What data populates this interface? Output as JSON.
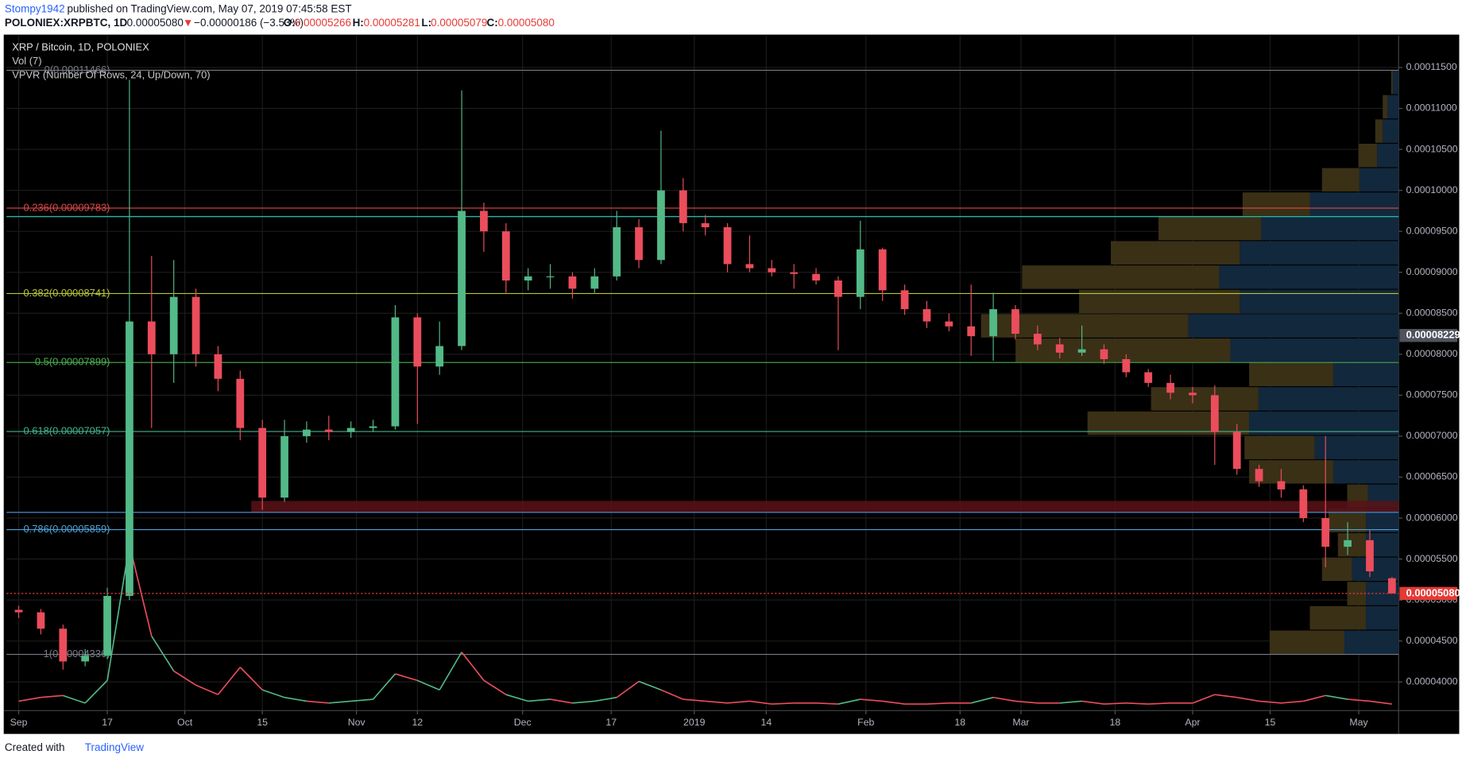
{
  "header": {
    "author": "Stompy1942",
    "published": "published on TradingView.com, May 07, 2019 07:45:58 EST",
    "symbol": "POLONIEX:XRPBTC, 1D",
    "last": "0.00005080",
    "arrow": "▼",
    "change": "−0.00000186 (−3.53%)",
    "o_label": "O:",
    "o": "0.00005266",
    "h_label": "H:",
    "h": "0.00005281",
    "l_label": "L:",
    "l": "0.00005079",
    "c_label": "C:",
    "c": "0.00005080"
  },
  "footer": {
    "created": "Created with",
    "brand": "TradingView"
  },
  "chart_data": {
    "type": "candlestick",
    "title": "XRP / Bitcoin, 1D, POLONIEX",
    "up_color": "#53b987",
    "down_color": "#eb4d5c",
    "grid": true,
    "x": [
      0,
      4,
      8,
      12,
      16,
      20,
      24,
      28,
      32,
      36,
      40,
      44,
      48,
      52,
      56,
      60,
      64,
      68,
      72,
      76,
      80,
      84,
      88,
      92,
      96,
      100,
      104,
      108,
      112,
      116,
      120,
      124,
      128,
      132,
      136,
      140,
      144,
      148,
      152,
      156,
      160,
      164,
      168,
      172,
      176,
      180,
      184,
      188,
      192,
      196,
      200,
      204,
      208,
      212,
      216,
      220,
      224,
      228,
      232,
      236,
      240,
      244,
      248
    ],
    "open": [
      4.88e-05,
      4.85e-05,
      4.65e-05,
      4.25e-05,
      4.32e-05,
      5.05e-05,
      8.4e-05,
      8e-05,
      8.7e-05,
      8e-05,
      7.7e-05,
      7.1e-05,
      6.25e-05,
      7e-05,
      7.08e-05,
      7.05e-05,
      7.1e-05,
      7.12e-05,
      8.45e-05,
      7.85e-05,
      8.1e-05,
      9.75e-05,
      9.5e-05,
      8.9e-05,
      8.95e-05,
      8.95e-05,
      8.8e-05,
      8.95e-05,
      9.55e-05,
      9.15e-05,
      0.0001,
      9.6e-05,
      9.55e-05,
      9.1e-05,
      9.05e-05,
      9e-05,
      8.98e-05,
      8.9e-05,
      8.7e-05,
      9.28e-05,
      8.78e-05,
      8.55e-05,
      8.4e-05,
      8.34e-05,
      8.22e-05,
      8.55e-05,
      8.25e-05,
      8.12e-05,
      8.02e-05,
      8.06e-05,
      7.94e-05,
      7.78e-05,
      7.65e-05,
      7.53e-05,
      7.5e-05,
      7.05e-05,
      6.6e-05,
      6.45e-05,
      6.35e-05,
      6e-05,
      5.65e-05,
      5.73e-05,
      5.266e-05
    ],
    "high": [
      4.93e-05,
      4.89e-05,
      4.7e-05,
      4.4e-05,
      5.15e-05,
      0.0001135,
      9.2e-05,
      9.15e-05,
      8.8e-05,
      8.1e-05,
      7.8e-05,
      7.2e-05,
      7.2e-05,
      7.18e-05,
      7.25e-05,
      7.18e-05,
      7.2e-05,
      8.6e-05,
      8.5e-05,
      8.4e-05,
      0.0001122,
      9.85e-05,
      9.6e-05,
      9.05e-05,
      9.1e-05,
      9e-05,
      9.05e-05,
      9.75e-05,
      9.65e-05,
      0.0001073,
      0.0001015,
      9.7e-05,
      9.6e-05,
      9.45e-05,
      9.15e-05,
      9.1e-05,
      9.05e-05,
      8.95e-05,
      9.63e-05,
      9.3e-05,
      8.85e-05,
      8.65e-05,
      8.5e-05,
      8.85e-05,
      8.75e-05,
      8.6e-05,
      8.35e-05,
      8.2e-05,
      8.35e-05,
      8.12e-05,
      8e-05,
      7.82e-05,
      7.75e-05,
      7.6e-05,
      7.62e-05,
      7.15e-05,
      6.65e-05,
      6.6e-05,
      6.4e-05,
      7e-05,
      5.95e-05,
      5.85e-05,
      5.281e-05
    ],
    "low": [
      4.78e-05,
      4.58e-05,
      4.15e-05,
      4.19e-05,
      4.28e-05,
      5e-05,
      7.1e-05,
      7.65e-05,
      7.85e-05,
      7.55e-05,
      6.95e-05,
      6.1e-05,
      6.2e-05,
      6.92e-05,
      6.95e-05,
      6.98e-05,
      7.05e-05,
      7.08e-05,
      7.15e-05,
      7.75e-05,
      8.05e-05,
      9.25e-05,
      8.75e-05,
      8.78e-05,
      8.8e-05,
      8.68e-05,
      8.75e-05,
      8.9e-05,
      9.05e-05,
      9.1e-05,
      9.5e-05,
      9.45e-05,
      9e-05,
      9e-05,
      8.95e-05,
      8.8e-05,
      8.85e-05,
      8.05e-05,
      8.55e-05,
      8.65e-05,
      8.48e-05,
      8.32e-05,
      8.28e-05,
      7.98e-05,
      7.92e-05,
      8.18e-05,
      8.05e-05,
      7.95e-05,
      7.98e-05,
      7.88e-05,
      7.72e-05,
      7.6e-05,
      7.45e-05,
      7.4e-05,
      6.65e-05,
      6.53e-05,
      6.38e-05,
      6.25e-05,
      5.95e-05,
      5.4e-05,
      5.55e-05,
      5.28e-05,
      5.079e-05
    ],
    "close": [
      4.85e-05,
      4.65e-05,
      4.25e-05,
      4.32e-05,
      5.05e-05,
      8.4e-05,
      8e-05,
      8.7e-05,
      8e-05,
      7.7e-05,
      7.1e-05,
      6.25e-05,
      7e-05,
      7.08e-05,
      7.05e-05,
      7.1e-05,
      7.12e-05,
      8.45e-05,
      7.85e-05,
      8.1e-05,
      9.75e-05,
      9.5e-05,
      8.9e-05,
      8.95e-05,
      8.95e-05,
      8.8e-05,
      8.95e-05,
      9.55e-05,
      9.15e-05,
      0.0001,
      9.6e-05,
      9.55e-05,
      9.1e-05,
      9.05e-05,
      9e-05,
      8.98e-05,
      8.9e-05,
      8.7e-05,
      9.28e-05,
      8.78e-05,
      8.55e-05,
      8.4e-05,
      8.34e-05,
      8.22e-05,
      8.55e-05,
      8.25e-05,
      8.12e-05,
      8.02e-05,
      8.06e-05,
      7.94e-05,
      7.78e-05,
      7.65e-05,
      7.53e-05,
      7.5e-05,
      7.05e-05,
      6.6e-05,
      6.45e-05,
      6.35e-05,
      6e-05,
      5.65e-05,
      5.73e-05,
      5.35e-05,
      5.08e-05
    ],
    "xlim": [
      -2.2,
      249.2
    ],
    "xticks": [
      {
        "value": 0,
        "label": "Sep"
      },
      {
        "value": 16,
        "label": "17"
      },
      {
        "value": 30,
        "label": "Oct"
      },
      {
        "value": 44,
        "label": "15"
      },
      {
        "value": 61,
        "label": "Nov"
      },
      {
        "value": 72,
        "label": "12"
      },
      {
        "value": 91,
        "label": "Dec"
      },
      {
        "value": 107,
        "label": "17"
      },
      {
        "value": 122,
        "label": "2019"
      },
      {
        "value": 135,
        "label": "14"
      },
      {
        "value": 153,
        "label": "Feb"
      },
      {
        "value": 170,
        "label": "18"
      },
      {
        "value": 181,
        "label": "Mar"
      },
      {
        "value": 198,
        "label": "18"
      },
      {
        "value": 212,
        "label": "Apr"
      },
      {
        "value": 226,
        "label": "15"
      },
      {
        "value": 242,
        "label": "May"
      }
    ],
    "ylim": [
      3.65e-05,
      0.0001189
    ],
    "yticks": [
      {
        "value": 4e-05,
        "label": "0.00004000"
      },
      {
        "value": 4.5e-05,
        "label": "0.00004500"
      },
      {
        "value": 5e-05,
        "label": "0.00005000"
      },
      {
        "value": 5.5e-05,
        "label": "0.00005500"
      },
      {
        "value": 6e-05,
        "label": "0.00006000"
      },
      {
        "value": 6.5e-05,
        "label": "0.00006500"
      },
      {
        "value": 7e-05,
        "label": "0.00007000"
      },
      {
        "value": 7.5e-05,
        "label": "0.00007500"
      },
      {
        "value": 8e-05,
        "label": "0.00008000"
      },
      {
        "value": 8.5e-05,
        "label": "0.00008500"
      },
      {
        "value": 9e-05,
        "label": "0.00009000"
      },
      {
        "value": 9.5e-05,
        "label": "0.00009500"
      },
      {
        "value": 0.0001,
        "label": "0.00010000"
      },
      {
        "value": 0.000105,
        "label": "0.00010500"
      },
      {
        "value": 0.00011,
        "label": "0.00011000"
      },
      {
        "value": 0.000115,
        "label": "0.00011500"
      }
    ],
    "fib": [
      {
        "label": "0(0.00011466)",
        "value": 0.00011466,
        "color": "#787b86"
      },
      {
        "label": "0.236(0.00009783)",
        "value": 9.783e-05,
        "color": "#e04848"
      },
      {
        "label": "0.382(0.00008741)",
        "value": 8.741e-05,
        "color": "#b7c43a"
      },
      {
        "label": "0.5(0.00007899)",
        "value": 7.899e-05,
        "color": "#4caf50"
      },
      {
        "label": "0.618(0.00007057)",
        "value": 7.057e-05,
        "color": "#43b38a"
      },
      {
        "label": "0.786(0.00005859)",
        "value": 5.859e-05,
        "color": "#4fa3d9"
      },
      {
        "label": "1(0.00004336)",
        "value": 4.336e-05,
        "color": "#787b86"
      }
    ],
    "lines": [
      {
        "value": 9.68e-05,
        "color": "#2bb8a6"
      },
      {
        "value": 6.07e-05,
        "color": "#3f7fc0"
      }
    ],
    "zone": {
      "range": [
        6.07e-05,
        6.21e-05
      ],
      "x_start": 42,
      "color": "#5a1216"
    },
    "price_tags": [
      {
        "label": "0.00008229",
        "value": 8.229e-05,
        "color": "#50535e"
      },
      {
        "label": "0.00005080",
        "value": 5.08e-05,
        "color": "#e53935"
      }
    ],
    "volume": {
      "title": "Vol (7)",
      "values": [
        8,
        12,
        14,
        6,
        30,
        174,
        77,
        40,
        25,
        15,
        44,
        20,
        12,
        8,
        6,
        8,
        10,
        37,
        30,
        20,
        60,
        30,
        15,
        8,
        10,
        6,
        8,
        12,
        29,
        20,
        10,
        8,
        6,
        8,
        5,
        6,
        6,
        5,
        10,
        8,
        5,
        5,
        6,
        6,
        12,
        8,
        6,
        6,
        8,
        5,
        6,
        5,
        6,
        6,
        15,
        12,
        8,
        6,
        8,
        14,
        10,
        8,
        5
      ]
    },
    "vpvr": {
      "title": "VPVR (Number Of Rows, 24, Up/Down, 70)",
      "range": [
        4.336e-05,
        0.00011466
      ],
      "up_color": "#12283d",
      "down_color": "#3a3016",
      "up": [
        58,
        35,
        35,
        50,
        35,
        35,
        33,
        70,
        90,
        160,
        150,
        70,
        180,
        225,
        170,
        192,
        170,
        147,
        95,
        42,
        23,
        17,
        12,
        6
      ],
      "down": [
        80,
        60,
        20,
        32,
        30,
        40,
        22,
        90,
        75,
        173,
        115,
        90,
        230,
        222,
        172,
        211,
        138,
        110,
        72,
        40,
        20,
        8,
        5,
        2
      ]
    }
  }
}
